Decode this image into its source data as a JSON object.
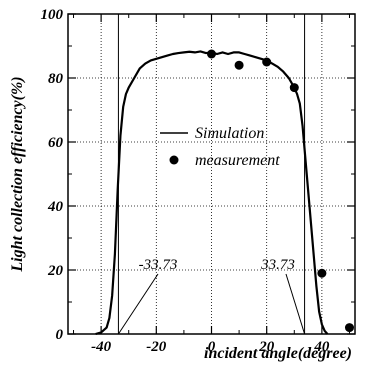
{
  "chart_data": {
    "type": "line",
    "title": "",
    "xlabel": "incident angle(degree)",
    "ylabel": "Light collection efficiency(%)",
    "xlim": [
      -52,
      52
    ],
    "ylim": [
      0,
      100
    ],
    "x_ticks": [
      -40,
      -20,
      0,
      20,
      40
    ],
    "x_tick_labels": [
      "-40",
      "-20",
      "0",
      "20",
      "40"
    ],
    "y_ticks": [
      0,
      20,
      40,
      60,
      80,
      100
    ],
    "y_tick_labels": [
      "0",
      "20",
      "40",
      "60",
      "80",
      "100"
    ],
    "x_gridlines": [
      -40,
      -20,
      0,
      20,
      40
    ],
    "y_gridlines": [
      20,
      40,
      60,
      80
    ],
    "grid_style": "dotted",
    "legend_position": "center",
    "series": [
      {
        "name": "Simulation",
        "style": "line",
        "x": [
          -42,
          -40,
          -38,
          -37,
          -36,
          -35,
          -34,
          -33,
          -32,
          -31,
          -30,
          -28,
          -26,
          -24,
          -22,
          -20,
          -18,
          -16,
          -14,
          -12,
          -10,
          -8,
          -6,
          -4,
          -2,
          0,
          2,
          4,
          6,
          8,
          10,
          12,
          14,
          16,
          18,
          20,
          22,
          24,
          26,
          28,
          30,
          31,
          32,
          33,
          34,
          35,
          36,
          37,
          38,
          39,
          40,
          41,
          42
        ],
        "y": [
          0,
          0.5,
          2,
          5,
          12,
          25,
          45,
          62,
          71,
          75,
          77,
          80,
          83,
          84.5,
          85.5,
          86,
          86.5,
          87,
          87.5,
          87.8,
          88,
          88.2,
          88,
          88.3,
          87.8,
          88,
          87.5,
          88,
          87.5,
          88,
          88,
          87.5,
          87,
          86.5,
          86,
          85.5,
          84.5,
          83.5,
          82,
          80,
          77,
          75,
          72,
          65,
          55,
          45,
          35,
          25,
          15,
          7,
          3,
          1,
          0
        ]
      },
      {
        "name": "measurement",
        "style": "scatter",
        "x": [
          0,
          10,
          20,
          30,
          40,
          50
        ],
        "y": [
          87.5,
          84,
          85,
          77,
          19,
          2
        ]
      }
    ],
    "vertical_lines": [
      -33.73,
      33.73
    ],
    "annotations": [
      {
        "text": "-33.73",
        "x": -33.73
      },
      {
        "text": "33.73",
        "x": 33.73
      }
    ]
  }
}
